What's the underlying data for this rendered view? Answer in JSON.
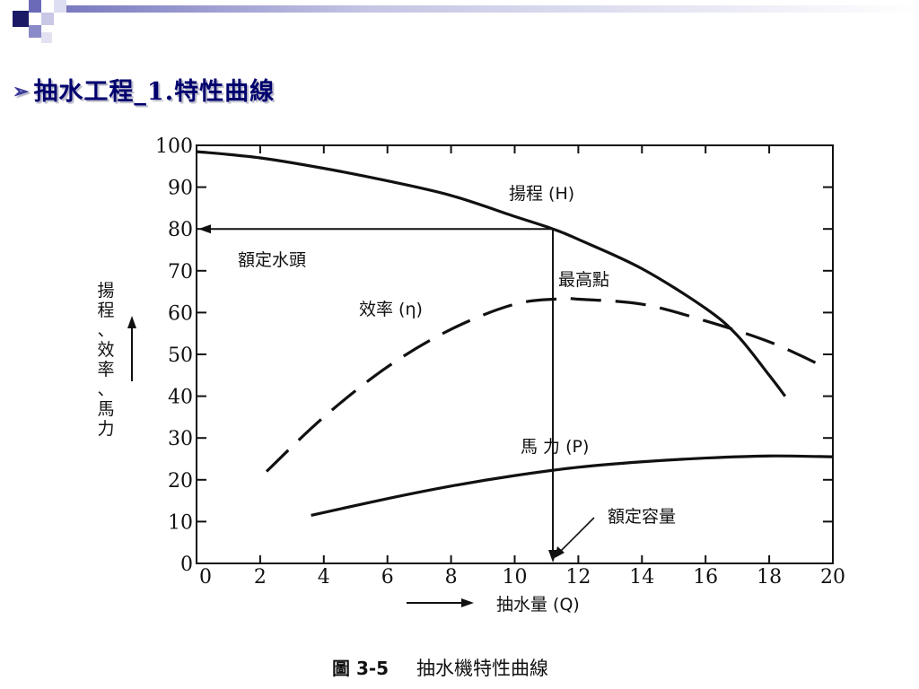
{
  "slide": {
    "title": "抽水工程_1.特性曲線",
    "title_color": "#00006e",
    "bullet_icon": "arrow-bullet-icon",
    "decoration_colors": [
      "#1a1a66",
      "#5c5cb0",
      "#d4d4ec"
    ]
  },
  "figure": {
    "caption_number": "圖 3-5",
    "caption_text": "抽水機特性曲線"
  },
  "chart_data": {
    "type": "line",
    "x_label": "抽水量 (Q)",
    "y_label": "揚程、效率、馬力",
    "xlim": [
      0,
      20
    ],
    "ylim": [
      0,
      100
    ],
    "x_ticks": [
      "0",
      "2",
      "4",
      "6",
      "8",
      "10",
      "12",
      "14",
      "16",
      "18",
      "20"
    ],
    "y_ticks": [
      "0",
      "10",
      "20",
      "30",
      "40",
      "50",
      "60",
      "70",
      "80",
      "90",
      "100"
    ],
    "grid": false,
    "series": [
      {
        "name": "揚程 (H)",
        "style": "solid",
        "x": [
          0,
          2,
          4,
          6,
          8,
          10,
          11.2,
          12,
          14,
          16,
          17,
          18,
          18.5
        ],
        "y": [
          98.5,
          97,
          94.5,
          91.5,
          88,
          83,
          80,
          77.5,
          70.5,
          61,
          54.5,
          45,
          40
        ]
      },
      {
        "name": "效率 (η)",
        "style": "dashed",
        "x": [
          2.2,
          4,
          6,
          8,
          10,
          11.5,
          12,
          14,
          16,
          18,
          19.6
        ],
        "y": [
          22,
          35,
          47,
          56,
          62,
          63.3,
          63.2,
          62,
          58,
          53,
          47.5
        ]
      },
      {
        "name": "馬 力 (P)",
        "style": "solid",
        "x": [
          3.6,
          6,
          8,
          10,
          12,
          14,
          16,
          18,
          20
        ],
        "y": [
          11.5,
          15.5,
          18.5,
          21,
          23,
          24.3,
          25.2,
          25.7,
          25.5
        ]
      }
    ],
    "annotations": {
      "rated_head": "額定水頭",
      "rated_head_value": 80,
      "best_point": "最高點",
      "rated_capacity": "額定容量",
      "rated_capacity_value": 11.2
    }
  }
}
